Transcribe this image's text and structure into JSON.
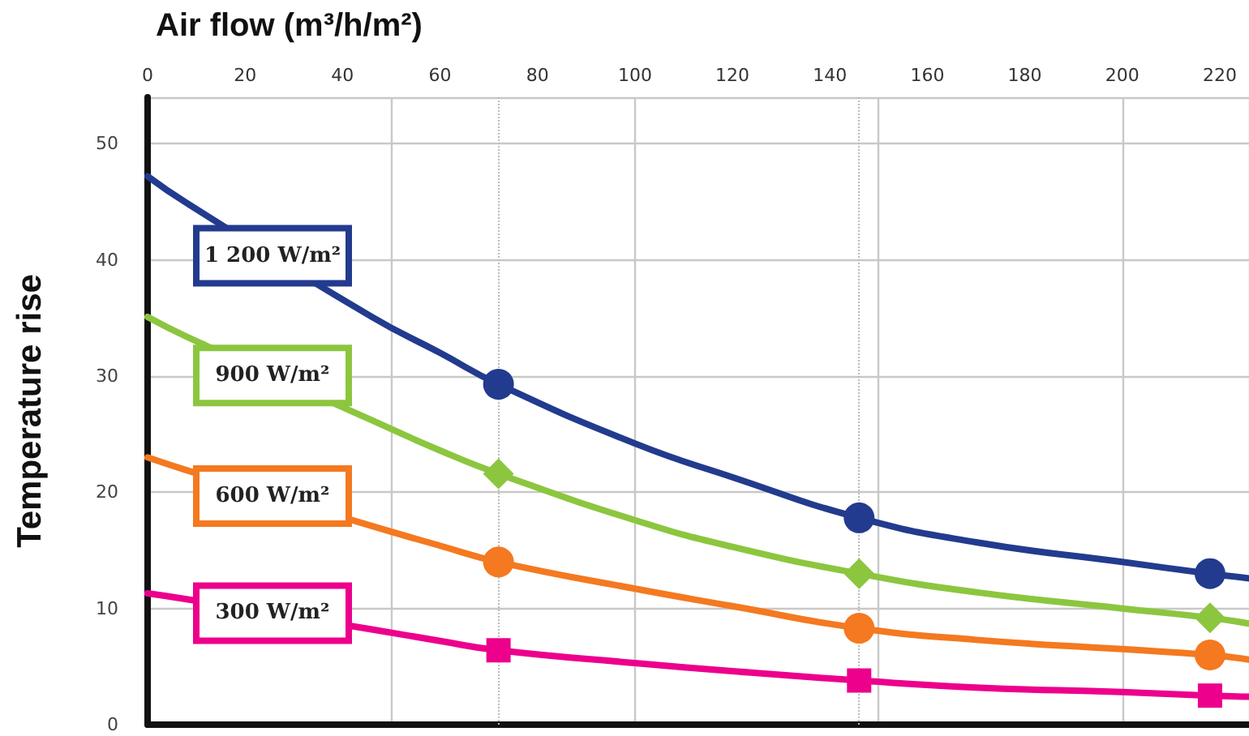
{
  "chart_data": {
    "type": "line",
    "xlabel": "Air flow (m³/h/m²)",
    "ylabel": "Temperature rise",
    "xlim": [
      0,
      226
    ],
    "xticks": [
      0,
      20,
      40,
      60,
      80,
      100,
      120,
      140,
      160,
      180,
      200,
      220
    ],
    "ylim": [
      0,
      54
    ],
    "yticks": [
      0,
      10,
      20,
      30,
      40,
      50
    ],
    "grid": true,
    "line_style": "solid",
    "marker": "none",
    "x": [
      0,
      8,
      46,
      60,
      72,
      100,
      120,
      146,
      170,
      200,
      218,
      226
    ],
    "series": [
      {
        "name": "1 200 W/m²",
        "color": "#233b8e",
        "values": [
          47.2,
          44.9,
          35.1,
          32.0,
          29.3,
          24.2,
          21.3,
          17.8,
          15.7,
          14.0,
          13.0,
          12.6
        ]
      },
      {
        "name": "900 W/m²",
        "color": "#8cc63f",
        "values": [
          35.1,
          33.4,
          26.2,
          23.6,
          21.6,
          17.6,
          15.3,
          13.0,
          11.4,
          10.0,
          9.2,
          8.7
        ]
      },
      {
        "name": "600 W/m²",
        "color": "#f47920",
        "values": [
          23.0,
          21.9,
          17.1,
          15.4,
          14.0,
          11.7,
          10.2,
          8.3,
          7.3,
          6.5,
          6.0,
          5.6
        ]
      },
      {
        "name": "300 W/m²",
        "color": "#ec008c",
        "values": [
          11.3,
          10.8,
          8.2,
          7.2,
          6.4,
          5.3,
          4.6,
          3.8,
          3.2,
          2.8,
          2.5,
          2.4
        ]
      },
      {
        "type": "scatter",
        "marker": "circle",
        "color": "#233b8e",
        "x": [
          72,
          146,
          218
        ],
        "values": [
          29.3,
          17.8,
          13.0
        ]
      },
      {
        "type": "scatter",
        "marker": "diamond",
        "color": "#8cc63f",
        "x": [
          72,
          146,
          218
        ],
        "values": [
          21.6,
          13.0,
          9.2
        ]
      },
      {
        "type": "scatter",
        "marker": "circle",
        "color": "#f47920",
        "x": [
          72,
          146,
          218
        ],
        "values": [
          14.0,
          8.3,
          6.0
        ]
      },
      {
        "type": "scatter",
        "marker": "square",
        "color": "#ec008c",
        "x": [
          72,
          146,
          218
        ],
        "values": [
          6.4,
          3.8,
          2.5
        ]
      }
    ],
    "ref_lines": [
      {
        "axis": "x",
        "value": 72,
        "color": "#bbbbbb",
        "line_style": "dotted"
      },
      {
        "axis": "x",
        "value": 146,
        "color": "#bbbbbb",
        "line_style": "dotted"
      }
    ]
  }
}
